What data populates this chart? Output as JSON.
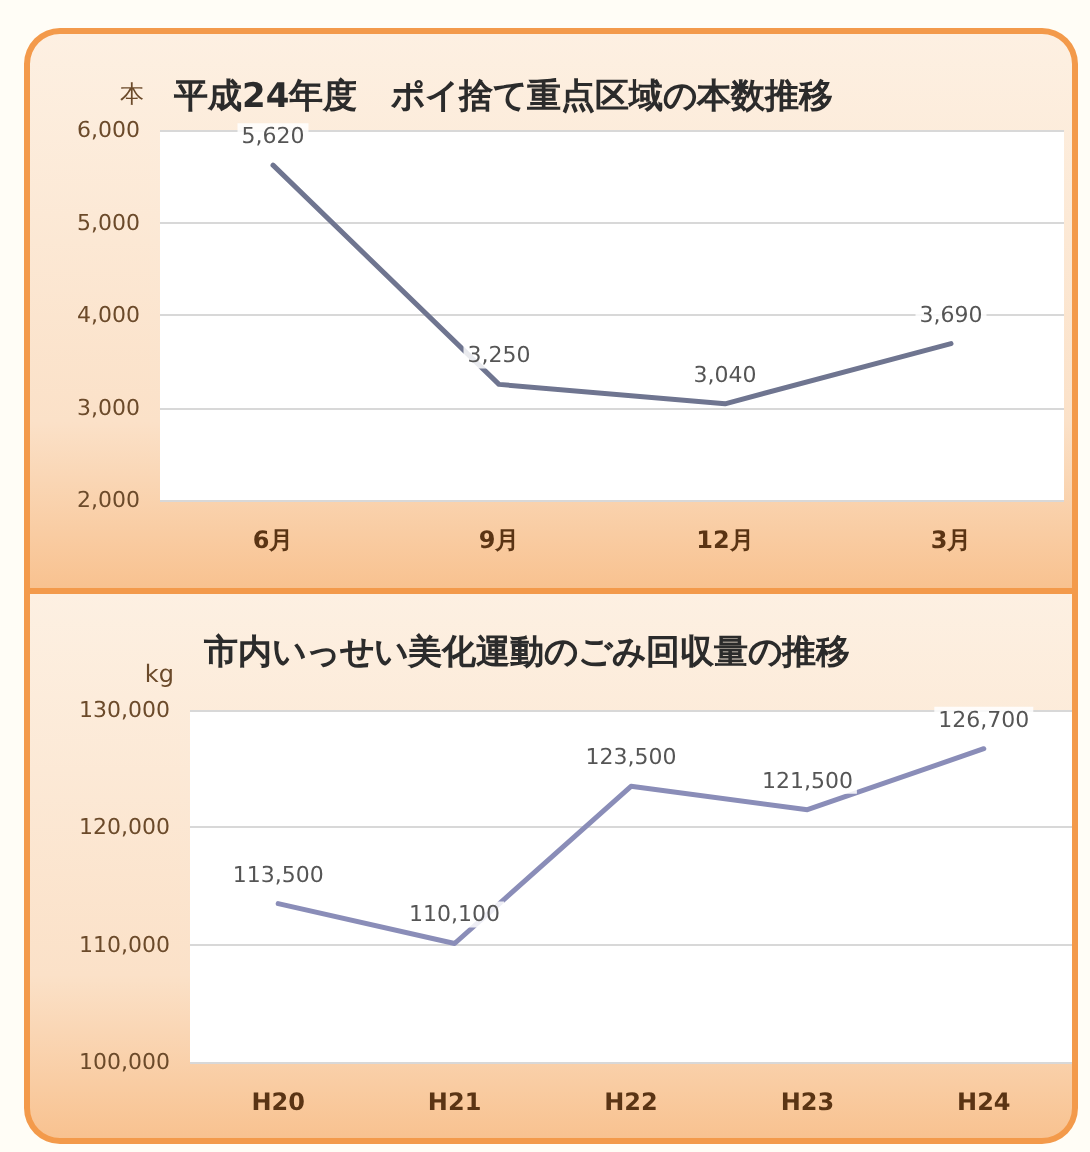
{
  "chart_data": [
    {
      "type": "line",
      "title": "平成24年度　ポイ捨て重点区域の本数推移",
      "ylabel": "本",
      "categories": [
        "6月",
        "9月",
        "12月",
        "3月"
      ],
      "values": [
        5620,
        3250,
        3040,
        3690
      ],
      "value_labels": [
        "5,620",
        "3,250",
        "3,040",
        "3,690"
      ],
      "color": "#6f7590",
      "ylim": [
        2000,
        6000
      ],
      "yticks": [
        {
          "value": 2000,
          "label": "2,000"
        },
        {
          "value": 3000,
          "label": "3,000"
        },
        {
          "value": 4000,
          "label": "4,000"
        },
        {
          "value": 5000,
          "label": "5,000"
        },
        {
          "value": 6000,
          "label": "6,000"
        }
      ],
      "grid": "y",
      "marker": "none",
      "line_style": "solid"
    },
    {
      "type": "line",
      "title": "市内いっせい美化運動のごみ回収量の推移",
      "ylabel": "kg",
      "categories": [
        "H20",
        "H21",
        "H22",
        "H23",
        "H24"
      ],
      "values": [
        113500,
        110100,
        123500,
        121500,
        126700
      ],
      "value_labels": [
        "113,500",
        "110,100",
        "123,500",
        "121,500",
        "126,700"
      ],
      "color": "#8a8db8",
      "ylim": [
        100000,
        130000
      ],
      "yticks": [
        {
          "value": 100000,
          "label": "100,000"
        },
        {
          "value": 110000,
          "label": "110,000"
        },
        {
          "value": 120000,
          "label": "120,000"
        },
        {
          "value": 130000,
          "label": "130,000"
        }
      ],
      "grid": "y",
      "marker": "none",
      "line_style": "solid"
    }
  ]
}
